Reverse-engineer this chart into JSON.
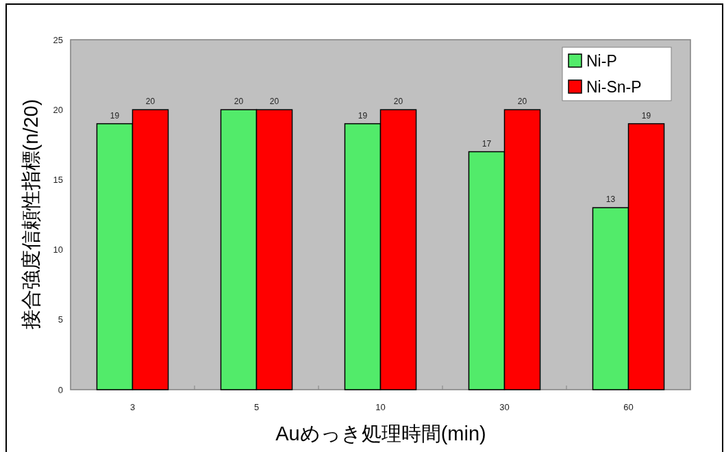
{
  "chart_data": {
    "type": "bar",
    "ylabel": "接合強度信頼性指標(n/20)",
    "xlabel": "Auめっき処理時間(min)",
    "categories": [
      "3",
      "5",
      "10",
      "30",
      "60"
    ],
    "series": [
      {
        "name": "Ni-P",
        "color": "#52eb6a",
        "values": [
          19,
          20,
          19,
          17,
          13
        ]
      },
      {
        "name": "Ni-Sn-P",
        "color": "#ff0000",
        "values": [
          20,
          20,
          20,
          20,
          19
        ]
      }
    ],
    "ylim": [
      0,
      25
    ],
    "yticks": [
      0,
      5,
      10,
      15,
      20,
      25
    ],
    "data_labels": true,
    "legend": "top right"
  }
}
